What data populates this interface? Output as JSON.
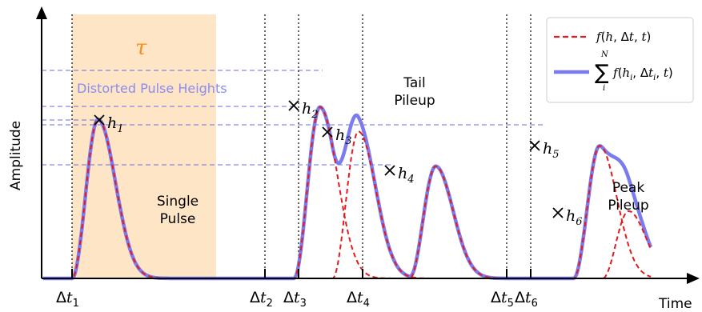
{
  "axes": {
    "ylabel": "Amplitude",
    "xlabel": "Time"
  },
  "tau_label": "τ",
  "distorted_label": "Distorted Pulse Heights",
  "annotations": {
    "single": [
      "Single",
      "Pulse"
    ],
    "tail": [
      "Tail",
      "Pileup"
    ],
    "peak": [
      "Peak",
      "Pileup"
    ]
  },
  "legend": {
    "single_label": "f(h, Δt, t)",
    "sum_label_sup": "N",
    "sum_label_sub": "i",
    "sum_label_body": "f(h",
    "sum_label_body2": ", Δt",
    "sum_label_body3": ", t)"
  },
  "height_labels": [
    "h1",
    "h2",
    "h3",
    "h4",
    "h5",
    "h6"
  ],
  "time_labels": [
    "Δt1",
    "Δt2",
    "Δt3",
    "Δt4",
    "Δt5",
    "Δt6"
  ],
  "colors": {
    "axis": "#000000",
    "tau_fill": "#fde5c5",
    "tau_text": "#ff8c1a",
    "pulse_dashed": "#e41a1c",
    "sum_line": "#7b7bef",
    "guide": "#6b6be6",
    "distorted_text": "#8c8cf0"
  },
  "chart_data": {
    "type": "line",
    "note": "qualitative pulse diagram",
    "pulses": [
      {
        "name": "h1",
        "t0": 1.0,
        "height": 0.78
      },
      {
        "name": "h2",
        "t0": 3.3,
        "height": 0.84
      },
      {
        "name": "h3",
        "t0": 3.7,
        "height": 0.72
      },
      {
        "name": "h4",
        "t0": 4.5,
        "height": 0.55
      },
      {
        "name": "h5",
        "t0": 6.2,
        "height": 0.65
      },
      {
        "name": "h6",
        "t0": 6.5,
        "height": 0.33
      }
    ]
  }
}
